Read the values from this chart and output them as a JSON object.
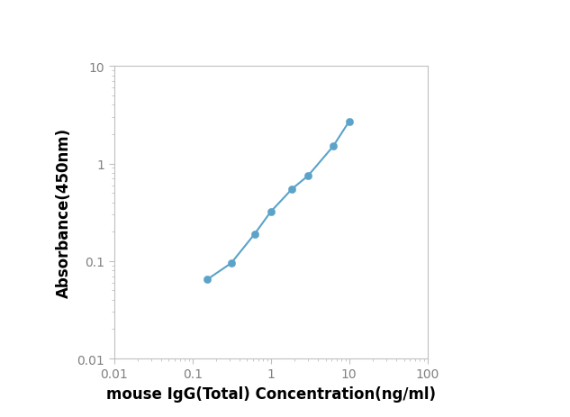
{
  "x": [
    0.156,
    0.3125,
    0.625,
    1.0,
    1.875,
    3.0,
    6.25,
    10.0
  ],
  "y": [
    0.065,
    0.095,
    0.19,
    0.32,
    0.55,
    0.75,
    1.5,
    2.7
  ],
  "line_color": "#5BA3C9",
  "marker_color": "#5BA3C9",
  "marker_size": 6,
  "line_width": 1.5,
  "xlabel": "mouse IgG(Total) Concentration(ng/ml)",
  "ylabel": "Absorbance(450nm)",
  "xlim": [
    0.01,
    100
  ],
  "ylim": [
    0.01,
    10
  ],
  "xlabel_fontsize": 12,
  "ylabel_fontsize": 12,
  "tick_fontsize": 10,
  "tick_color": "#808080",
  "spine_color": "#c0c0c0",
  "background_color": "#ffffff",
  "xticks": [
    0.01,
    0.1,
    1,
    10,
    100
  ],
  "xtick_labels": [
    "0.01",
    "0.1",
    "1",
    "10",
    "100"
  ],
  "yticks": [
    0.01,
    0.1,
    1,
    10
  ],
  "ytick_labels": [
    "0.01",
    "0.1",
    "1",
    "10"
  ]
}
